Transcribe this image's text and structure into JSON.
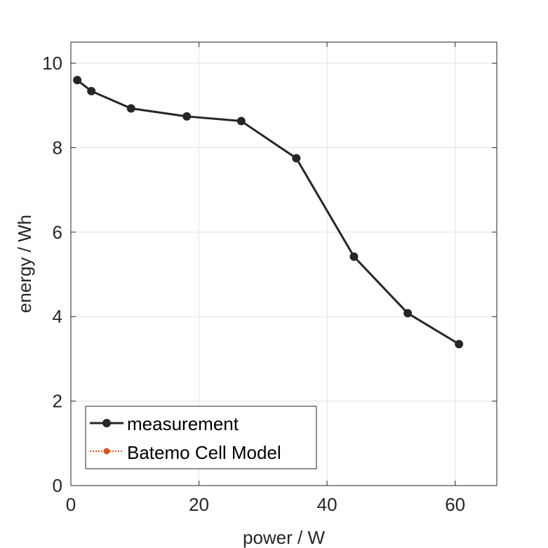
{
  "chart_data": {
    "type": "line",
    "title": "",
    "xlabel": "power / W",
    "ylabel": "energy / Wh",
    "xlim": [
      0,
      66.5
    ],
    "ylim": [
      0,
      10.5
    ],
    "xticks": [
      0,
      20,
      40,
      60
    ],
    "yticks": [
      0,
      2,
      4,
      6,
      8,
      10
    ],
    "xtick_labels": [
      "0",
      "20",
      "40",
      "60"
    ],
    "ytick_labels": [
      "0",
      "2",
      "4",
      "6",
      "8",
      "10"
    ],
    "grid": true,
    "legend_position": "bottom-left",
    "series": [
      {
        "name": "measurement",
        "color": "#262626",
        "line_style": "solid",
        "marker": "circle",
        "x": [
          1.0,
          3.2,
          9.4,
          18.1,
          26.6,
          35.2,
          44.2,
          52.6,
          60.6
        ],
        "y": [
          9.6,
          9.34,
          8.93,
          8.74,
          8.63,
          7.75,
          5.42,
          4.08,
          3.35
        ]
      },
      {
        "name": "Batemo Cell Model",
        "color": "#D95319",
        "line_style": "dotted",
        "marker": "circle",
        "x": [],
        "y": []
      }
    ]
  }
}
